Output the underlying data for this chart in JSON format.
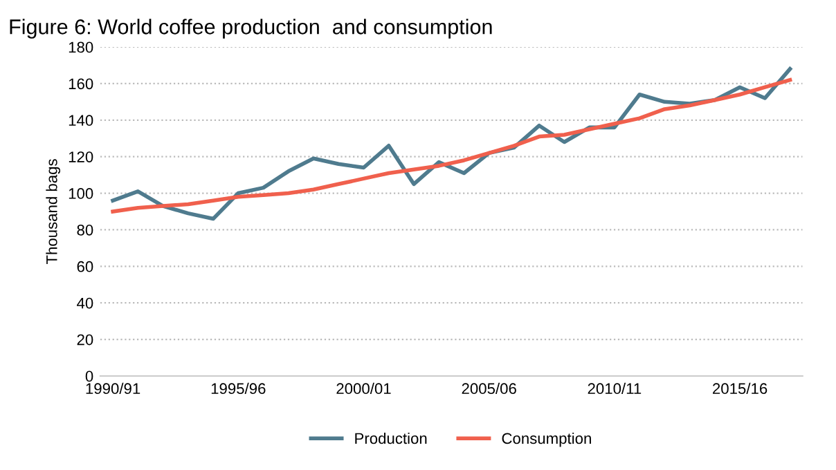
{
  "chart_data": {
    "type": "line",
    "title": "Figure 6: World coffee production  and consumption",
    "ylabel": "Thousand bags",
    "categories": [
      "1990/91",
      null,
      null,
      null,
      null,
      "1995/96",
      null,
      null,
      null,
      null,
      "2000/01",
      null,
      null,
      null,
      null,
      "2005/06",
      null,
      null,
      null,
      null,
      "2010/11",
      null,
      null,
      null,
      null,
      "2015/16",
      null,
      null
    ],
    "series": [
      {
        "name": "Production",
        "color": "#4f7b8e",
        "values": [
          96,
          101,
          93,
          89,
          86,
          100,
          103,
          112,
          119,
          116,
          114,
          126,
          105,
          117,
          111,
          122,
          125,
          137,
          128,
          136,
          136,
          154,
          150,
          149,
          151,
          158,
          152,
          168
        ]
      },
      {
        "name": "Consumption",
        "color": "#f0604d",
        "values": [
          90,
          92,
          93,
          94,
          96,
          98,
          99,
          100,
          102,
          105,
          108,
          111,
          113,
          115,
          118,
          122,
          126,
          131,
          132,
          135,
          138,
          141,
          146,
          148,
          151,
          154,
          158,
          162
        ]
      }
    ],
    "ylim": [
      0,
      180
    ],
    "yticks": [
      0,
      20,
      40,
      60,
      80,
      100,
      120,
      140,
      160,
      180
    ],
    "grid": "y",
    "legend": "bottom",
    "marker": "none",
    "line_style": "solid"
  }
}
